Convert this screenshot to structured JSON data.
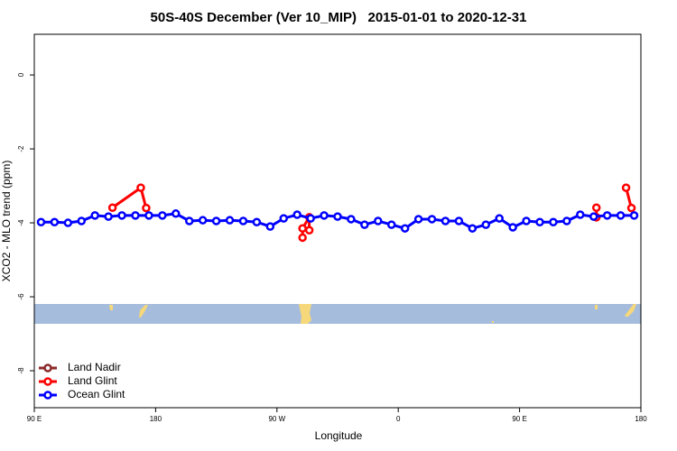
{
  "chart_data": {
    "type": "line",
    "title": "50S-40S December (Ver 10_MIP)   2015-01-01 to 2020-12-31",
    "xlabel": "Longitude",
    "ylabel": "XCO2 - MLO trend (ppm)",
    "xlim": [
      90,
      540
    ],
    "ylim": [
      -9,
      1.1
    ],
    "xticks": [
      {
        "value": 90,
        "label": "90 E"
      },
      180,
      {
        "value": 270,
        "label": "90 W"
      },
      {
        "value": 360,
        "label": "0"
      },
      {
        "value": 450,
        "label": "90 E"
      },
      {
        "value": 540,
        "label": "180"
      }
    ],
    "yticks": [
      0,
      -2,
      -4,
      -6,
      -8
    ],
    "legend": "bottom-left",
    "series": [
      {
        "name": "Land Nadir",
        "color": "#8b2a2a",
        "x": [],
        "values": []
      },
      {
        "name": "Land Glint",
        "color": "#ff0000",
        "x": [
          148,
          169,
          173,
          null,
          289,
          289,
          294,
          294,
          null,
          507,
          507,
          null,
          529,
          533
        ],
        "values": [
          -3.59,
          -3.05,
          -3.6,
          null,
          -4.4,
          -4.15,
          -3.85,
          -4.2,
          null,
          -3.59,
          -3.85,
          null,
          -3.05,
          -3.6
        ]
      },
      {
        "name": "Ocean Glint",
        "color": "#0000ff",
        "x": [
          95,
          105,
          115,
          125,
          135,
          145,
          155,
          165,
          175,
          185,
          195,
          205,
          215,
          225,
          235,
          245,
          255,
          265,
          275,
          285,
          295,
          305,
          315,
          325,
          335,
          345,
          355,
          365,
          375,
          385,
          395,
          405,
          415,
          425,
          435,
          445,
          455,
          465,
          475,
          485,
          495,
          505,
          515,
          525,
          535
        ],
        "values": [
          -3.98,
          -3.98,
          -4.0,
          -3.95,
          -3.8,
          -3.83,
          -3.8,
          -3.8,
          -3.8,
          -3.8,
          -3.75,
          -3.95,
          -3.93,
          -3.95,
          -3.93,
          -3.95,
          -3.98,
          -4.1,
          -3.88,
          -3.78,
          -3.88,
          -3.8,
          -3.83,
          -3.9,
          -4.05,
          -3.95,
          -4.05,
          -4.15,
          -3.9,
          -3.9,
          -3.95,
          -3.95,
          -4.15,
          -4.05,
          -3.88,
          -4.12,
          -3.95,
          -3.98,
          -3.98,
          -3.95,
          -3.78,
          -3.83,
          -3.8,
          -3.8,
          -3.8
        ]
      }
    ]
  }
}
